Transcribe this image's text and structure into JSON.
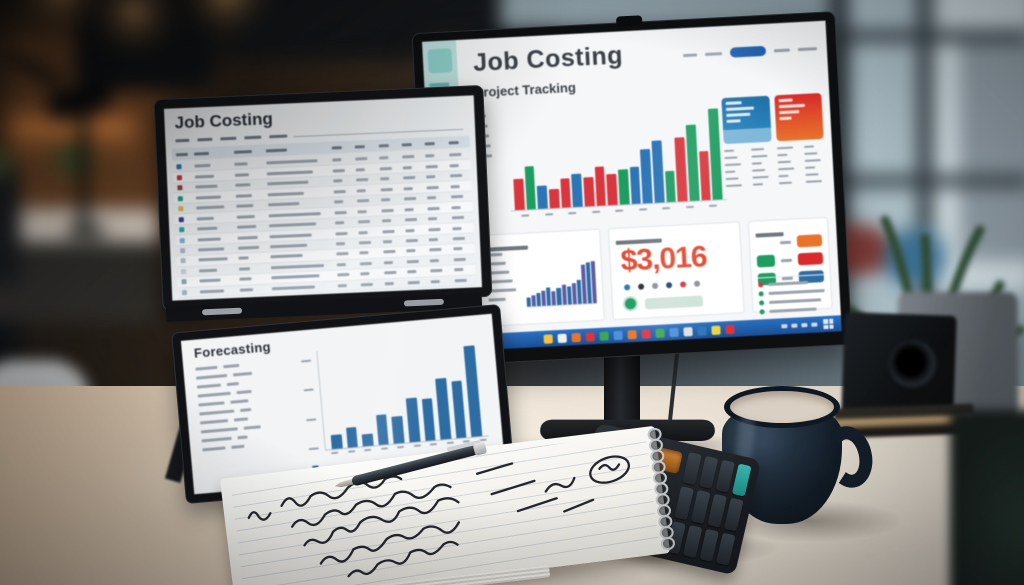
{
  "photo": {
    "description": "Office desk photo: dual-screen device and desktop monitor showing job costing dashboards, notebook with handwritten notes, pen, calculator and dark coffee mug"
  },
  "left_device": {
    "top_screen": {
      "title": "Job Costing",
      "menu_item_count": 5,
      "table": {
        "row_count": 13,
        "icon_colors": [
          "#2e75b6",
          "#c0392b",
          "#8e4a3a",
          "#1f9d8a",
          "#e0b84f",
          "#3b3f8f",
          "#2aa5a0",
          "#7fb3d5",
          "#aab7c4",
          "#b0bec5",
          "#c4cdd6",
          "#90a4ae",
          "#9fb4c9"
        ]
      }
    },
    "bottom_screen": {
      "title": "Forecasting",
      "row_label_count": 10,
      "legend_item_count": 2,
      "legend_color": "#2e6da4"
    }
  },
  "right_monitor": {
    "app_title": "Job Costing",
    "subtitle": "Project Tracking",
    "nav": {
      "button_color": "#1f5fae",
      "text_item_count": 4
    },
    "kpi": {
      "value": "$3,016",
      "color": "#e0492f",
      "dot_colors": [
        "#2e75b6",
        "#2a2f36",
        "#8a9096",
        "#1a3f6f",
        "#d9363e",
        "#8a9096"
      ]
    },
    "cards": {
      "left_color": "#1f6fa8",
      "right_color_top": "#d92b2b",
      "right_color_bottom": "#e8742c",
      "table_rows": 6
    },
    "totals_panel": {
      "rows": [
        {
          "left_pill": null,
          "right_pill": "#e8742c"
        },
        {
          "left_pill": "#1f9d61",
          "right_pill": "#d92b2b"
        },
        {
          "left_pill": "#1f9d61",
          "right_pill": "#2e6da4"
        }
      ],
      "legend_dot_colors": [
        "#d9363e",
        "#1f9d61",
        "#1f9d61",
        "#1f9d61"
      ]
    },
    "taskbar": {
      "color": "#1d5fa8",
      "icon_colors": [
        "#f5c242",
        "#f0f0f0",
        "#e8742c",
        "#d9363e",
        "#3aa655",
        "#4a90d9",
        "#e8742c",
        "#d9363e",
        "#3aa655",
        "#4a90d9",
        "#e0e0e0",
        "#2e75b6",
        "#e8d44d",
        "#d9363e"
      ]
    }
  },
  "chart_data": [
    {
      "id": "forecasting",
      "type": "bar",
      "title": "Forecasting",
      "values": [
        14,
        20,
        12,
        30,
        27,
        44,
        42,
        62,
        58,
        92
      ],
      "bar_color": "#2e6da4",
      "note": "relative bar heights in percent, rising trend, axis labels illegible"
    },
    {
      "id": "project-tracking-main",
      "type": "bar",
      "title": "Project Tracking",
      "values": [
        30,
        42,
        22,
        18,
        28,
        32,
        28,
        38,
        30,
        34,
        36,
        52,
        60,
        30,
        62,
        74,
        48,
        88
      ],
      "bar_colors": [
        "#d9363e",
        "#1f9d61",
        "#2e75b6",
        "#d9363e",
        "#d9363e",
        "#2e75b6",
        "#d9363e",
        "#d9363e",
        "#d9363e",
        "#1f9d61",
        "#2e75b6",
        "#2e75b6",
        "#2e75b6",
        "#1f9d61",
        "#d9363e",
        "#1f9d61",
        "#d9363e",
        "#1f9d61"
      ],
      "note": "multicolor rising bars, axis labels illegible"
    },
    {
      "id": "productivity-mini",
      "type": "bar",
      "values": [
        15,
        18,
        22,
        26,
        30,
        24,
        28,
        34,
        30,
        36,
        40,
        66,
        70,
        72
      ],
      "bar_colors": [
        "#2e6da4",
        "#5b5ea6"
      ],
      "note": "small dense blue-purple bar chart, rising trend"
    }
  ]
}
